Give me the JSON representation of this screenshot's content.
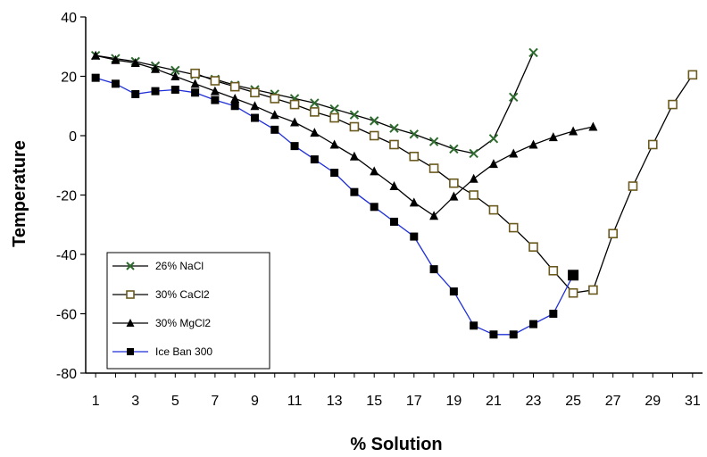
{
  "chart_data": {
    "type": "line",
    "title": "",
    "xlabel": "% Solution",
    "ylabel": "Temperature",
    "xlim": [
      0.5,
      31.5
    ],
    "ylim": [
      -80,
      40
    ],
    "xticks": [
      1,
      3,
      5,
      7,
      9,
      11,
      13,
      15,
      17,
      19,
      21,
      23,
      25,
      27,
      29,
      31
    ],
    "yticks": [
      -80,
      -60,
      -40,
      -20,
      0,
      20,
      40
    ],
    "legend_position": "bottom-left",
    "grid": false,
    "series": [
      {
        "name": "26% NaCl",
        "color": "#2e6b2e",
        "line_color": "#000000",
        "marker": "x",
        "x": [
          1,
          2,
          3,
          4,
          5,
          6,
          7,
          8,
          9,
          10,
          11,
          12,
          13,
          14,
          15,
          16,
          17,
          18,
          19,
          20,
          21,
          22,
          23
        ],
        "y": [
          27,
          26,
          25,
          23.5,
          22,
          20.5,
          19,
          17,
          15.5,
          14,
          12.5,
          11,
          9,
          7,
          5,
          2.5,
          0.5,
          -2,
          -4.5,
          -6,
          -1,
          13,
          28
        ]
      },
      {
        "name": "30% CaCl2",
        "color": "#6b5a1e",
        "line_color": "#000000",
        "marker": "square-open",
        "x": [
          6,
          7,
          8,
          9,
          10,
          11,
          12,
          13,
          14,
          15,
          16,
          17,
          18,
          19,
          20,
          21,
          22,
          23,
          24,
          25,
          26,
          27,
          28,
          29,
          30,
          31
        ],
        "y": [
          21,
          18.5,
          16.5,
          14.5,
          12.5,
          10.5,
          8,
          6,
          3,
          0,
          -3,
          -7,
          -11,
          -16,
          -20,
          -25,
          -31,
          -37.5,
          -45.5,
          -53,
          -52,
          -33,
          -17,
          -3,
          10.5,
          20.5
        ]
      },
      {
        "name": "30% MgCl2",
        "color": "#000000",
        "line_color": "#000000",
        "marker": "triangle",
        "x": [
          1,
          2,
          3,
          4,
          5,
          6,
          7,
          8,
          9,
          10,
          11,
          12,
          13,
          14,
          15,
          16,
          17,
          18,
          19,
          20,
          21,
          22,
          23,
          24,
          25,
          26
        ],
        "y": [
          27,
          25.5,
          24.5,
          22.5,
          20,
          17.5,
          15,
          12.5,
          10,
          7,
          4.5,
          1,
          -3,
          -7,
          -12,
          -17,
          -22.5,
          -27,
          -20.5,
          -14.5,
          -9.5,
          -6,
          -3,
          -0.5,
          1.5,
          3
        ]
      },
      {
        "name": "Ice Ban 300",
        "color": "#000000",
        "line_color": "#1f2fd6",
        "marker": "square",
        "x": [
          1,
          2,
          3,
          4,
          5,
          6,
          7,
          8,
          9,
          10,
          11,
          12,
          13,
          14,
          15,
          16,
          17,
          18,
          19,
          20,
          21,
          22,
          23,
          24,
          25
        ],
        "y": [
          19.5,
          17.5,
          14,
          15,
          15.5,
          14.5,
          12,
          10,
          6,
          2,
          -3.5,
          -8,
          -12.5,
          -19,
          -24,
          -29,
          -34,
          -45,
          -52.5,
          -64,
          -67,
          -67,
          -63.5,
          -60,
          -47
        ]
      }
    ]
  }
}
